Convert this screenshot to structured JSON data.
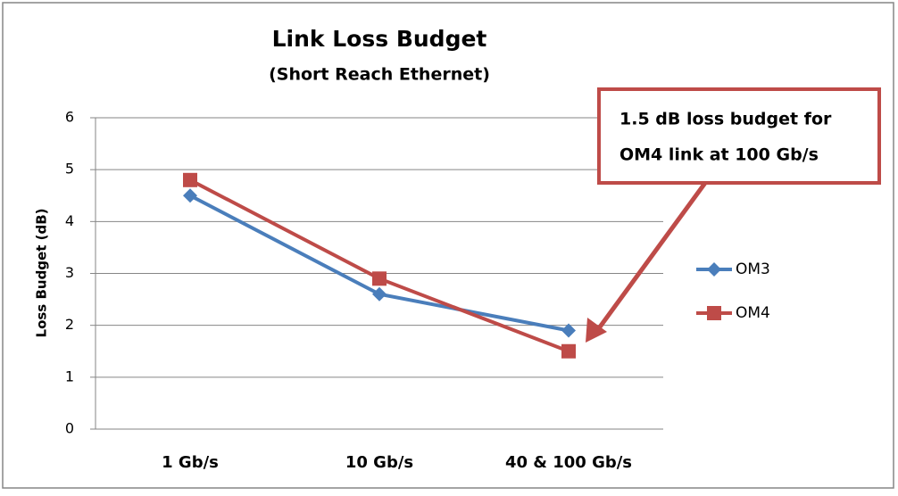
{
  "chart_data": {
    "type": "line",
    "title": "Link Loss Budget",
    "subtitle": "(Short Reach Ethernet)",
    "y_label": "Loss Budget (dB)",
    "categories": [
      "1 Gb/s",
      "10 Gb/s",
      "40 & 100 Gb/s"
    ],
    "series": [
      {
        "name": "OM3",
        "color": "#4a7ebb",
        "marker": "diamond",
        "values": [
          4.5,
          2.6,
          1.9
        ]
      },
      {
        "name": "OM4",
        "color": "#be4b48",
        "marker": "square",
        "values": [
          4.8,
          2.9,
          1.5
        ]
      }
    ],
    "ylim": [
      0,
      6
    ],
    "yticks": [
      0,
      1,
      2,
      3,
      4,
      5,
      6
    ],
    "grid": true,
    "legend": "right",
    "annotation": {
      "lines": [
        "1.5 dB loss budget for",
        "OM4 link at 100 Gb/s"
      ],
      "color": "#be4b48"
    }
  }
}
